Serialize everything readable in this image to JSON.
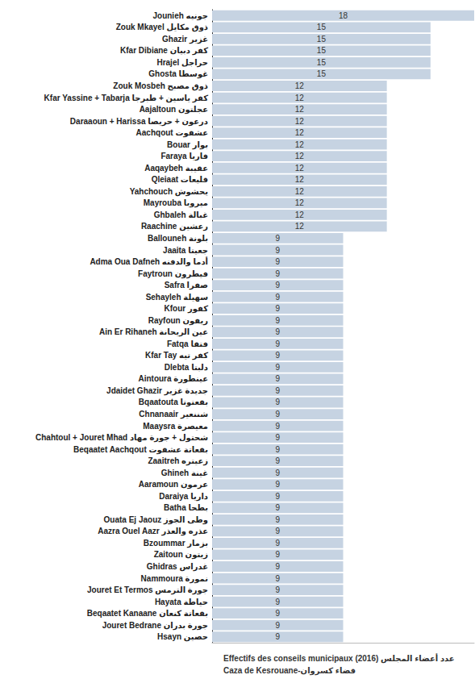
{
  "chart_data": {
    "type": "bar",
    "orientation": "horizontal",
    "title": "Effectifs des conseils municipaux (2016) عدد أعضاء المجلس",
    "subtitle": "Caza de Kesrouane-قضاء كسروان",
    "categories": [
      "Jounieh جونيه",
      "Zouk Mkayel ذوق مكايل",
      "Ghazir غزير",
      "Kfar Dibiane كفر دبيان",
      "Hrajel حراجل",
      "Ghosta غوسطا",
      "Zouk Mosbeh ذوق مصبح",
      "Kfar Yassine + Tabarja كفر ياسين + طبرجا",
      "Aajaltoun عجلتون",
      "Daraaoun + Harissa درعون + حريصا",
      "Aachqout عشقوت",
      "Bouar بوار",
      "Faraya فاريا",
      "Aaqaybeh عقيبة",
      "Qleiaat قليعات",
      "Yahchouch يحشوش",
      "Mayrouba ميروبا",
      "Ghbaleh غبالة",
      "Raachine رعشين",
      "Ballouneh بلونة",
      "Jaaita جعيتا",
      "Adma Oua Dafneh أدما والدفنه",
      "Faytroun فيطرون",
      "Safra صفرا",
      "Sehayleh سهيلة",
      "Kfour كفور",
      "Rayfoun ريفون",
      "Ain Er Rihaneh عين الريحانة",
      "Fatqa فتقا",
      "Kfar Tay كفر تيه",
      "Dlebta دلبتا",
      "Aintoura عينطورة",
      "Jdaidet Ghazir جديدة غزير",
      "Bqaatouta بقعتوتا",
      "Chnanaair شننعير",
      "Maaysra معيصرة",
      "Chahtoul + Jouret Mhad شحتول + جورة مهاد",
      "Beqaatet Aachqout بقعاتة عشقوت",
      "Zaaitreh زعيتره",
      "Ghineh غينة",
      "Aaramoun عرمون",
      "Daraiya داريا",
      "Batha بطحا",
      "Ouata Ej Jaouz وطى الجوز",
      "Aazra Ouel Aazr عذره والعذر",
      "Bzoummar بزمار",
      "Zaitoun زيتون",
      "Ghidras غدراس",
      "Nammoura نمورة",
      "Jouret Et Termos جورة الترمس",
      "Hayata حياطة",
      "Beqaatet Kanaane بقعاتة كنعان",
      "Jouret Bedrane جورة بدران",
      "Hsayn حصين"
    ],
    "values": [
      18,
      15,
      15,
      15,
      15,
      15,
      12,
      12,
      12,
      12,
      12,
      12,
      12,
      12,
      12,
      12,
      12,
      12,
      12,
      9,
      9,
      9,
      9,
      9,
      9,
      9,
      9,
      9,
      9,
      9,
      9,
      9,
      9,
      9,
      9,
      9,
      9,
      9,
      9,
      9,
      9,
      9,
      9,
      9,
      9,
      9,
      9,
      9,
      9,
      9,
      9,
      9,
      9,
      9
    ],
    "color": "#c6d3e2",
    "xlim": [
      0,
      18
    ],
    "grid": false,
    "data_labels": true,
    "tick_labels": "y"
  }
}
